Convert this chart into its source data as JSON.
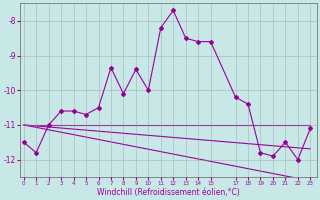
{
  "xlabel": "Windchill (Refroidissement éolien,°C)",
  "x_values": [
    0,
    1,
    2,
    3,
    4,
    5,
    6,
    7,
    8,
    9,
    10,
    11,
    12,
    13,
    14,
    15,
    17,
    18,
    19,
    20,
    21,
    22,
    23
  ],
  "y_main": [
    -11.5,
    -11.8,
    -11.0,
    -10.6,
    -10.6,
    -10.7,
    -10.5,
    -9.35,
    -10.1,
    -9.4,
    -10.0,
    -8.2,
    -7.7,
    -8.5,
    -8.6,
    -8.6,
    -10.2,
    -10.4,
    -11.8,
    -11.9,
    -11.5,
    -12.0,
    -11.1
  ],
  "y_line1": [
    -11.0,
    -11.0,
    -11.0,
    -11.0,
    -11.0,
    -11.0,
    -11.0,
    -11.0,
    -11.0,
    -11.0,
    -11.0,
    -11.0,
    -11.0,
    -11.0,
    -11.0,
    -11.0,
    -11.0,
    -11.0,
    -11.0,
    -11.0,
    -11.0,
    -11.0,
    -11.0
  ],
  "y_line2": [
    -11.0,
    -11.03,
    -11.06,
    -11.09,
    -11.12,
    -11.15,
    -11.18,
    -11.21,
    -11.24,
    -11.27,
    -11.3,
    -11.33,
    -11.36,
    -11.39,
    -11.42,
    -11.45,
    -11.51,
    -11.54,
    -11.57,
    -11.6,
    -11.63,
    -11.66,
    -11.69
  ],
  "y_line3": [
    -11.0,
    -11.07,
    -11.14,
    -11.21,
    -11.28,
    -11.35,
    -11.42,
    -11.49,
    -11.56,
    -11.63,
    -11.7,
    -11.77,
    -11.84,
    -11.91,
    -11.98,
    -12.05,
    -12.19,
    -12.26,
    -12.33,
    -12.4,
    -12.47,
    -12.54,
    -12.61
  ],
  "line_color": "#990099",
  "bg_color": "#c8e8e8",
  "grid_color": "#999999",
  "ylim": [
    -12.5,
    -7.5
  ],
  "yticks": [
    -12,
    -11,
    -10,
    -9,
    -8
  ],
  "xtick_positions": [
    0,
    1,
    2,
    3,
    4,
    5,
    6,
    7,
    8,
    9,
    10,
    11,
    12,
    13,
    14,
    15,
    17,
    18,
    19,
    20,
    21,
    22,
    23
  ],
  "xtick_labels": [
    "0",
    "1",
    "2",
    "3",
    "4",
    "5",
    "6",
    "7",
    "8",
    "9",
    "10",
    "11",
    "12",
    "13",
    "14",
    "15",
    "17",
    "18",
    "19",
    "20",
    "21",
    "22",
    "23"
  ],
  "xlim": [
    -0.3,
    23.5
  ]
}
